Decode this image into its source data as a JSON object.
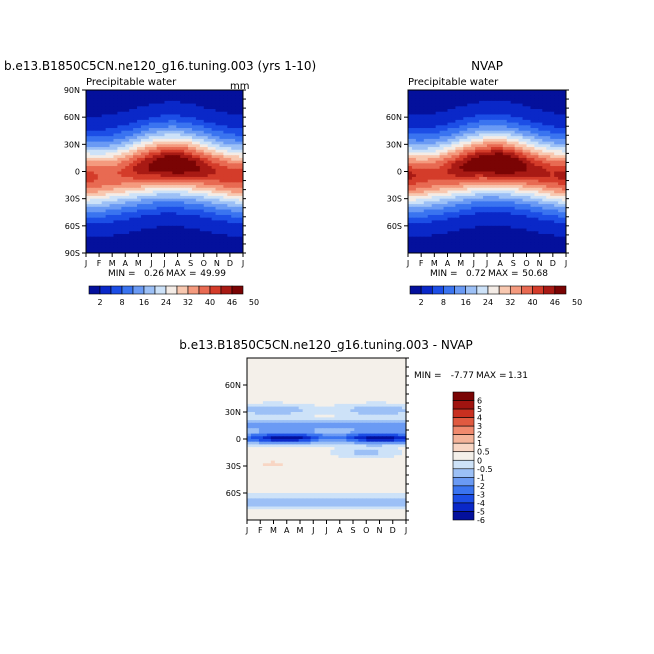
{
  "chart_data": [
    {
      "type": "heatmap",
      "id": "model",
      "title": "b.e13.B1850C5CN.ne120_g16.tuning.003 (yrs 1-10)",
      "subtitle": "Precipitable water",
      "units": "mm",
      "x_ticks": [
        "J",
        "F",
        "M",
        "A",
        "M",
        "J",
        "J",
        "A",
        "S",
        "O",
        "N",
        "D",
        "J"
      ],
      "y_ticks": [
        "90N",
        "60N",
        "30N",
        "0",
        "30S",
        "60S",
        "90S"
      ],
      "ylim": [
        -90,
        90
      ],
      "min": "0.26",
      "max": "49.99",
      "min_label": "MIN =",
      "max_label": "MAX =",
      "colorbar_labels": [
        "2",
        "8",
        "16",
        "24",
        "32",
        "40",
        "46",
        "50"
      ],
      "equator_max_by_month": [
        42,
        40,
        39,
        41,
        44,
        47,
        49,
        50,
        48,
        45,
        43,
        42,
        42
      ]
    },
    {
      "type": "heatmap",
      "id": "obs",
      "title": "NVAP",
      "subtitle": "Precipitable water",
      "x_ticks": [
        "J",
        "F",
        "M",
        "A",
        "M",
        "J",
        "J",
        "A",
        "S",
        "O",
        "N",
        "D",
        "J"
      ],
      "y_ticks": [
        "60N",
        "30N",
        "0",
        "30S",
        "60S"
      ],
      "ylim": [
        -90,
        90
      ],
      "min": "0.72",
      "max": "50.68",
      "min_label": "MIN =",
      "max_label": "MAX =",
      "colorbar_labels": [
        "2",
        "8",
        "16",
        "24",
        "32",
        "40",
        "46",
        "50"
      ],
      "equator_max_by_month": [
        44,
        42,
        41,
        43,
        46,
        48,
        50,
        51,
        49,
        46,
        44,
        43,
        44
      ]
    },
    {
      "type": "heatmap",
      "id": "diff",
      "title": "b.e13.B1850C5CN.ne120_g16.tuning.003 - NVAP",
      "x_ticks": [
        "J",
        "F",
        "M",
        "A",
        "M",
        "J",
        "J",
        "A",
        "S",
        "O",
        "N",
        "D",
        "J"
      ],
      "y_ticks": [
        "60N",
        "30N",
        "0",
        "30S",
        "60S"
      ],
      "ylim": [
        -90,
        90
      ],
      "min": "-7.77",
      "max": "1.31",
      "min_label": "MIN =",
      "max_label": "MAX =",
      "colorbar_labels": [
        "6",
        "5",
        "4",
        "3",
        "2",
        "1",
        "0.5",
        "0",
        "-0.5",
        "-1",
        "-2",
        "-3",
        "-4",
        "-5",
        "-6"
      ]
    }
  ],
  "colors": {
    "pw_levels": [
      "#04109c",
      "#0a28c8",
      "#1c4ee6",
      "#3a74f0",
      "#6a9af4",
      "#9cc0f6",
      "#cde2f8",
      "#f4ece6",
      "#f8c8b0",
      "#f49a7e",
      "#e86a52",
      "#d43c2a",
      "#a81a14",
      "#7a0404"
    ],
    "diff_levels": [
      "#04109c",
      "#0a28c8",
      "#1c4ee6",
      "#3a74f0",
      "#6a9af4",
      "#9cc0f6",
      "#cde2f8",
      "#f4f0ea",
      "#f8d6c4",
      "#f4b49a",
      "#f08a6e",
      "#e05a40",
      "#c83020",
      "#a01410",
      "#7a0404"
    ]
  }
}
